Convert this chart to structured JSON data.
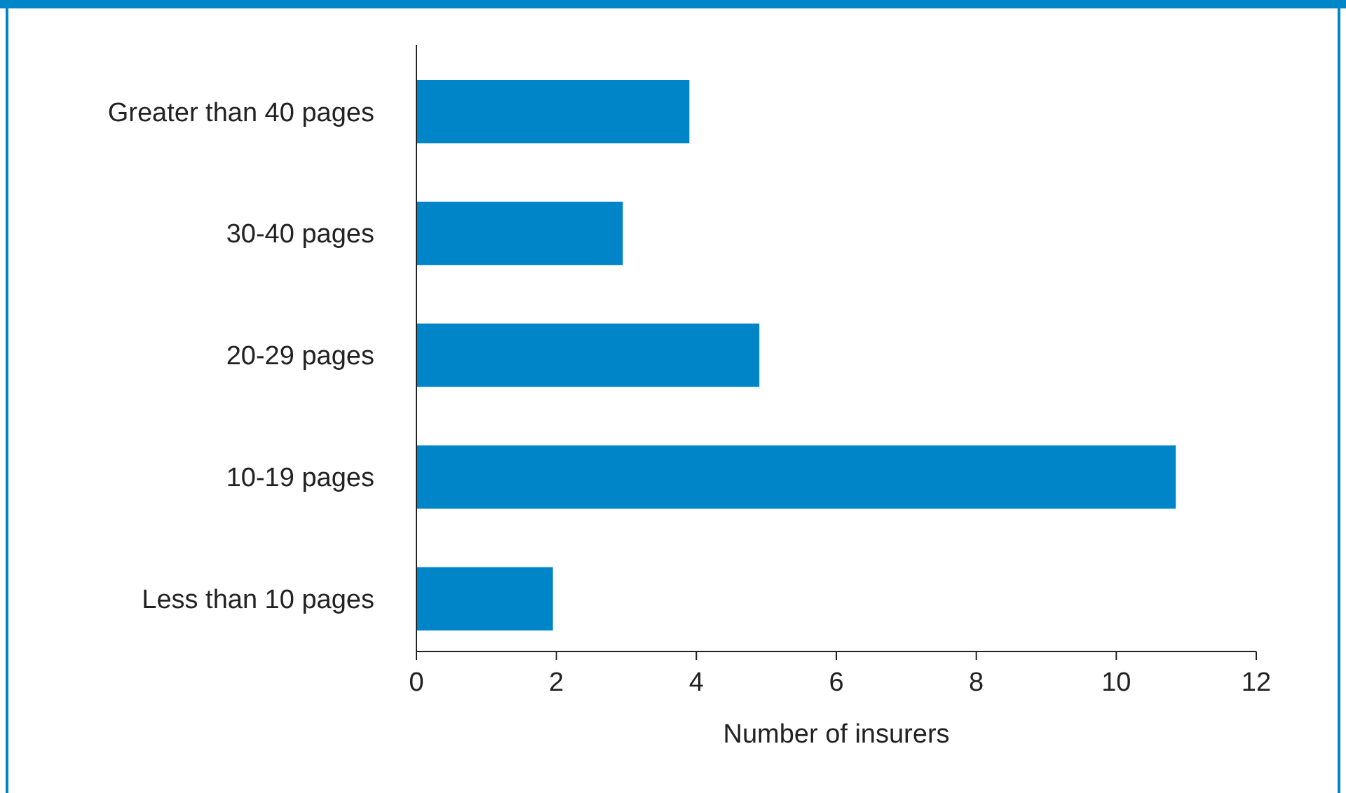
{
  "chart_data": {
    "type": "bar",
    "orientation": "horizontal",
    "xlabel": "Number of insurers",
    "categories": [
      "Greater than 40 pages",
      "30-40 pages",
      "20-29 pages",
      "10-19 pages",
      "Less than 10 pages"
    ],
    "values": [
      3.9,
      2.95,
      4.9,
      10.85,
      1.95
    ],
    "color": "#0085c8",
    "xlim": [
      0,
      12
    ],
    "xticks": [
      0,
      2,
      4,
      6,
      8,
      10,
      12
    ]
  }
}
